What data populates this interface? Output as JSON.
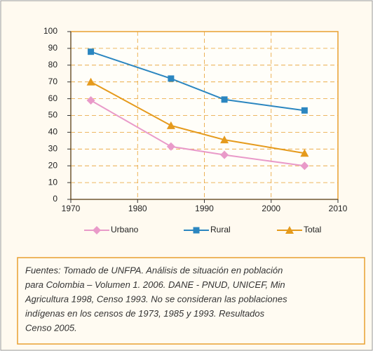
{
  "chart_data": {
    "type": "line",
    "x": [
      1973,
      1985,
      1993,
      2005
    ],
    "series": [
      {
        "name": "Urbano",
        "color": "#e99ac9",
        "marker": "diamond",
        "values": [
          59,
          31.5,
          26.5,
          20
        ]
      },
      {
        "name": "Rural",
        "color": "#2b86c0",
        "marker": "square",
        "values": [
          88,
          72,
          59.5,
          53
        ]
      },
      {
        "name": "Total",
        "color": "#e59a1c",
        "marker": "triangle",
        "values": [
          70,
          44,
          35.5,
          27.5
        ]
      }
    ],
    "xlim": [
      1970,
      2010
    ],
    "xticks": [
      1970,
      1980,
      1990,
      2000,
      2010
    ],
    "ylim": [
      0,
      100
    ],
    "yticks": [
      0,
      10,
      20,
      30,
      40,
      50,
      60,
      70,
      80,
      90,
      100
    ],
    "grid": true,
    "legend": "bottom",
    "source": [
      "Fuentes: Tomado de UNFPA. Análisis de situación en población",
      "para Colombia – Volumen 1. 2006. DANE - PNUD, UNICEF, Min",
      "Agricultura 1998, Censo 1993. No se consideran las poblaciones",
      "indígenas en los censos de 1973, 1985 y 1993. Resultados",
      "Censo 2005."
    ]
  }
}
